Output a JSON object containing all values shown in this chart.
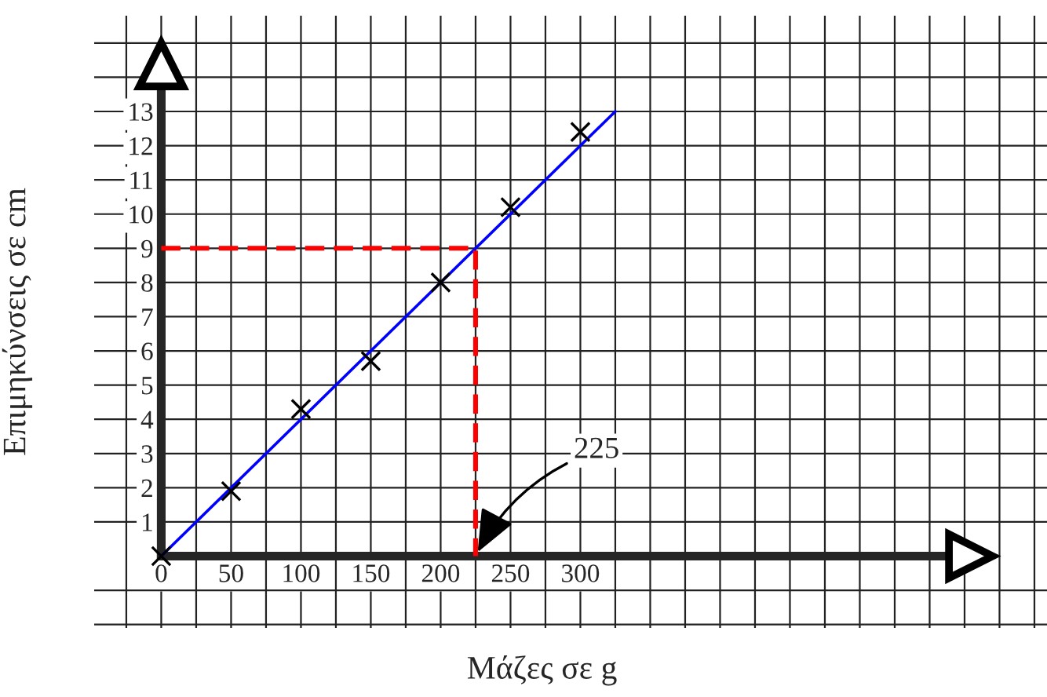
{
  "chart_data": {
    "type": "scatter",
    "xlabel": "Μάζες σε g",
    "ylabel": "Επιμηκύνσεις σε cm",
    "xlim": [
      -48,
      634
    ],
    "ylim": [
      -2.1,
      15.8
    ],
    "xticks": [
      {
        "value": -25,
        "label": null
      },
      0,
      {
        "value": 25,
        "label": null
      },
      50,
      {
        "value": 75,
        "label": null
      },
      100,
      {
        "value": 125,
        "label": null
      },
      150,
      {
        "value": 175,
        "label": null
      },
      200,
      {
        "value": 225,
        "label": null
      },
      250,
      {
        "value": 275,
        "label": null
      },
      300,
      {
        "value": 325,
        "label": null
      },
      {
        "value": 350,
        "label": null
      },
      {
        "value": 375,
        "label": null
      },
      {
        "value": 400,
        "label": null
      },
      {
        "value": 425,
        "label": null
      },
      {
        "value": 450,
        "label": null
      },
      {
        "value": 475,
        "label": null
      },
      {
        "value": 500,
        "label": null
      },
      {
        "value": 525,
        "label": null
      },
      {
        "value": 550,
        "label": null
      },
      {
        "value": 575,
        "label": null
      },
      {
        "value": 600,
        "label": null
      },
      {
        "value": 625,
        "label": null
      }
    ],
    "yticks": [
      {
        "value": -2,
        "label": null
      },
      {
        "value": -1,
        "label": null
      },
      1,
      2,
      3,
      4,
      5,
      6,
      7,
      8,
      9,
      10,
      11,
      12,
      13,
      {
        "value": 14,
        "label": null
      },
      {
        "value": 15,
        "label": null
      }
    ],
    "grid": true,
    "legend": false,
    "series": [
      {
        "type": "scatter",
        "color": "#000000",
        "marker": "cross",
        "x": [
          0,
          50,
          100,
          150,
          200,
          250,
          300
        ],
        "values": [
          0,
          1.9,
          4.3,
          5.7,
          8.0,
          10.2,
          12.4
        ]
      },
      {
        "type": "line",
        "color": "#0000ff",
        "line_style": "solid",
        "x": [
          0,
          325
        ],
        "values": [
          0,
          13
        ]
      },
      {
        "type": "line",
        "color": "#ff0000",
        "line_style": "dashed",
        "x": [
          0,
          225,
          225
        ],
        "values": [
          9,
          9,
          0
        ]
      }
    ],
    "annotations": [
      {
        "text": "225",
        "x": 225,
        "y": 0
      }
    ]
  }
}
